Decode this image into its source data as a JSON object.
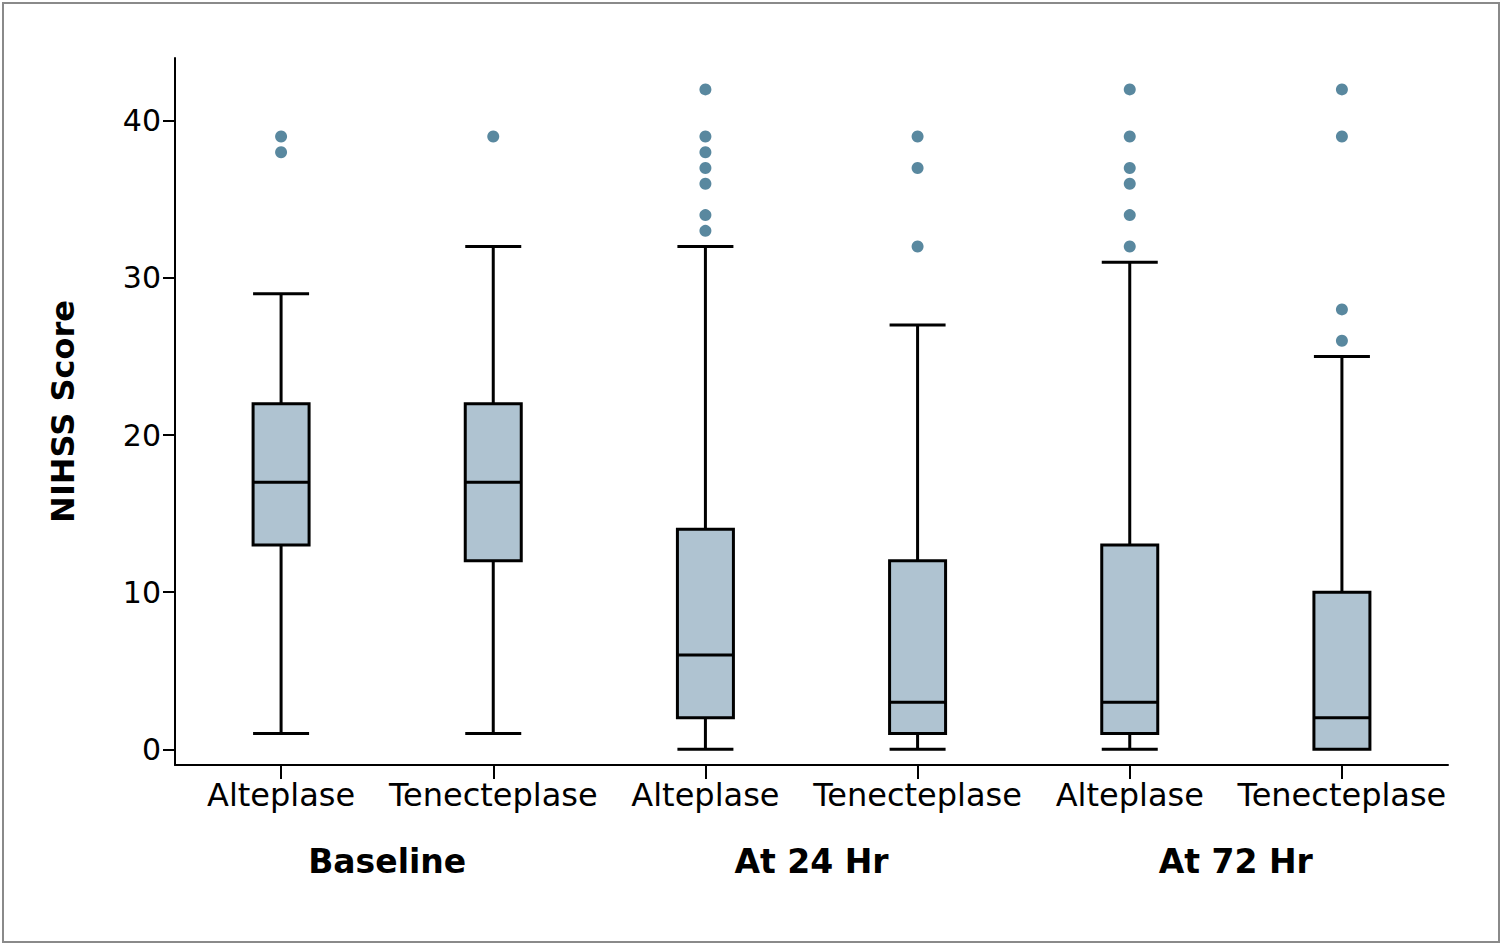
{
  "chart_data": {
    "type": "boxplot",
    "y_label": "NIHSS Score",
    "categories": [
      "Alteplase",
      "Tenecteplase",
      "Alteplase",
      "Tenecteplase",
      "Alteplase",
      "Tenecteplase"
    ],
    "groups": [
      "Baseline",
      "At 24 Hr",
      "At 72 Hr"
    ],
    "series": [
      {
        "type": "boxplot",
        "color": "#afc3d1",
        "values": [
          [
            1,
            13,
            17,
            22,
            29
          ],
          [
            1,
            12,
            17,
            22,
            32
          ],
          [
            0,
            2,
            6,
            14,
            32
          ],
          [
            0,
            1,
            3,
            12,
            27
          ],
          [
            0,
            1,
            3,
            13,
            31
          ],
          [
            0,
            0,
            2,
            10,
            25
          ]
        ]
      },
      {
        "type": "scatter",
        "color": "#2f6a87",
        "marker": "circle",
        "values": [
          [
            38,
            39
          ],
          [
            39
          ],
          [
            33,
            34,
            36,
            37,
            38,
            39,
            42
          ],
          [
            32,
            37,
            39
          ],
          [
            32,
            34,
            36,
            37,
            39,
            42
          ],
          [
            26,
            28,
            39,
            42
          ]
        ]
      }
    ],
    "ylim": [
      -1,
      44
    ],
    "yticks": [
      0,
      10,
      20,
      30,
      40
    ],
    "grid": false
  }
}
